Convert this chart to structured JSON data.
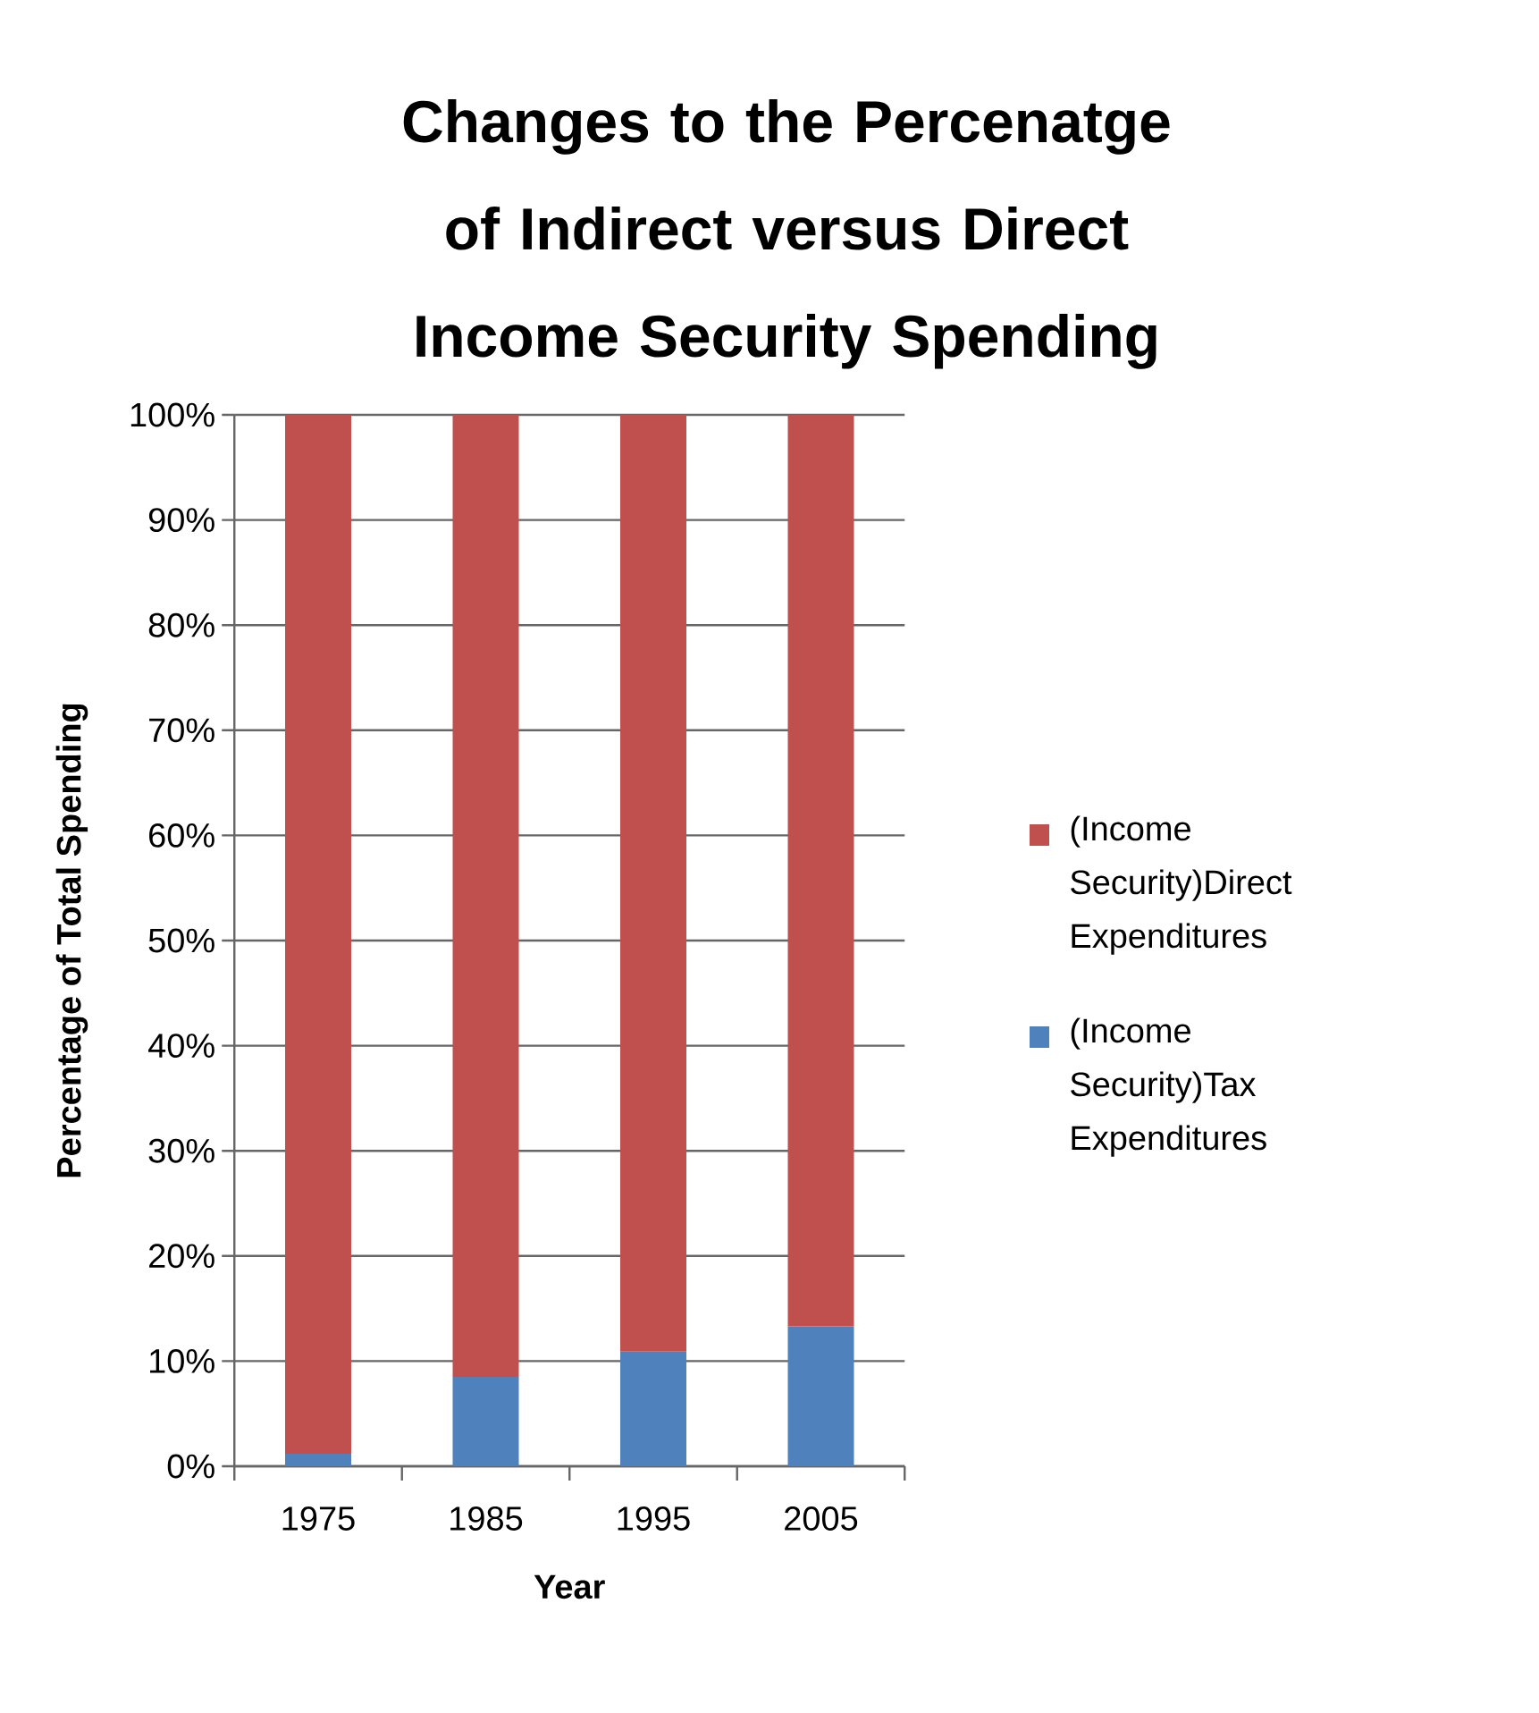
{
  "chart_data": {
    "type": "bar",
    "stacked": true,
    "title": "Changes to the Percenatge of Indirect versus Direct Income Security Spending",
    "xlabel": "Year",
    "ylabel": "Percentage  of Total  Spending",
    "categories": [
      "1975",
      "1985",
      "1995",
      "2005"
    ],
    "series": [
      {
        "name": "(Income Security)Tax Expenditures",
        "color": "#4f81bd",
        "values": [
          1.2,
          8.5,
          10.9,
          13.3
        ]
      },
      {
        "name": "(Income Security)Direct Expenditures",
        "color": "#c0504d",
        "values": [
          98.8,
          91.5,
          89.1,
          86.7
        ]
      }
    ],
    "ylim": [
      0,
      100
    ],
    "yticks": [
      {
        "value": 0,
        "label": "0%"
      },
      {
        "value": 10,
        "label": "10%"
      },
      {
        "value": 20,
        "label": "20%"
      },
      {
        "value": 30,
        "label": "30%"
      },
      {
        "value": 40,
        "label": "40%"
      },
      {
        "value": 50,
        "label": "50%"
      },
      {
        "value": 60,
        "label": "60%"
      },
      {
        "value": 70,
        "label": "70%"
      },
      {
        "value": 80,
        "label": "80%"
      },
      {
        "value": 90,
        "label": "90%"
      },
      {
        "value": 100,
        "label": "100%"
      }
    ],
    "grid": "y",
    "legend": "right"
  }
}
